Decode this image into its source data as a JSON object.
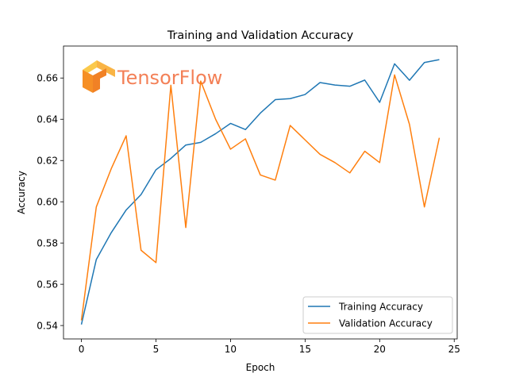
{
  "chart_data": {
    "type": "line",
    "title": "Training and Validation Accuracy",
    "xlabel": "Epoch",
    "ylabel": "Accuracy",
    "xlim": [
      -1.2,
      25.2
    ],
    "ylim": [
      0.5335,
      0.6755
    ],
    "xticks": [
      0,
      5,
      10,
      15,
      20,
      25
    ],
    "yticks": [
      0.54,
      0.56,
      0.58,
      0.6,
      0.62,
      0.64,
      0.66
    ],
    "xtick_labels": [
      "0",
      "5",
      "10",
      "15",
      "20",
      "25"
    ],
    "ytick_labels": [
      "0.54",
      "0.56",
      "0.58",
      "0.60",
      "0.62",
      "0.64",
      "0.66"
    ],
    "grid": false,
    "legend_position": "lower-right",
    "x": [
      0,
      1,
      2,
      3,
      4,
      5,
      6,
      7,
      8,
      9,
      10,
      11,
      12,
      13,
      14,
      15,
      16,
      17,
      18,
      19,
      20,
      21,
      22,
      23,
      24
    ],
    "series": [
      {
        "name": "Training Accuracy",
        "color": "#1f77b4",
        "values": [
          0.5405,
          0.572,
          0.585,
          0.596,
          0.6035,
          0.6155,
          0.621,
          0.6275,
          0.6288,
          0.633,
          0.638,
          0.635,
          0.643,
          0.6495,
          0.65,
          0.652,
          0.6578,
          0.6566,
          0.656,
          0.659,
          0.6482,
          0.6669,
          0.6589,
          0.6675,
          0.6689
        ]
      },
      {
        "name": "Validation Accuracy",
        "color": "#ff7f0e",
        "values": [
          0.5425,
          0.5975,
          0.616,
          0.632,
          0.5765,
          0.5705,
          0.6565,
          0.5875,
          0.6585,
          0.64,
          0.6255,
          0.6305,
          0.613,
          0.6105,
          0.637,
          0.63,
          0.623,
          0.619,
          0.614,
          0.6245,
          0.619,
          0.6615,
          0.6375,
          0.5975,
          0.631
        ]
      }
    ]
  },
  "watermark": {
    "text": "TensorFlow",
    "color": "#f26b3a",
    "logo_colors": [
      "#f9a825",
      "#f57c00",
      "#e65100"
    ]
  }
}
